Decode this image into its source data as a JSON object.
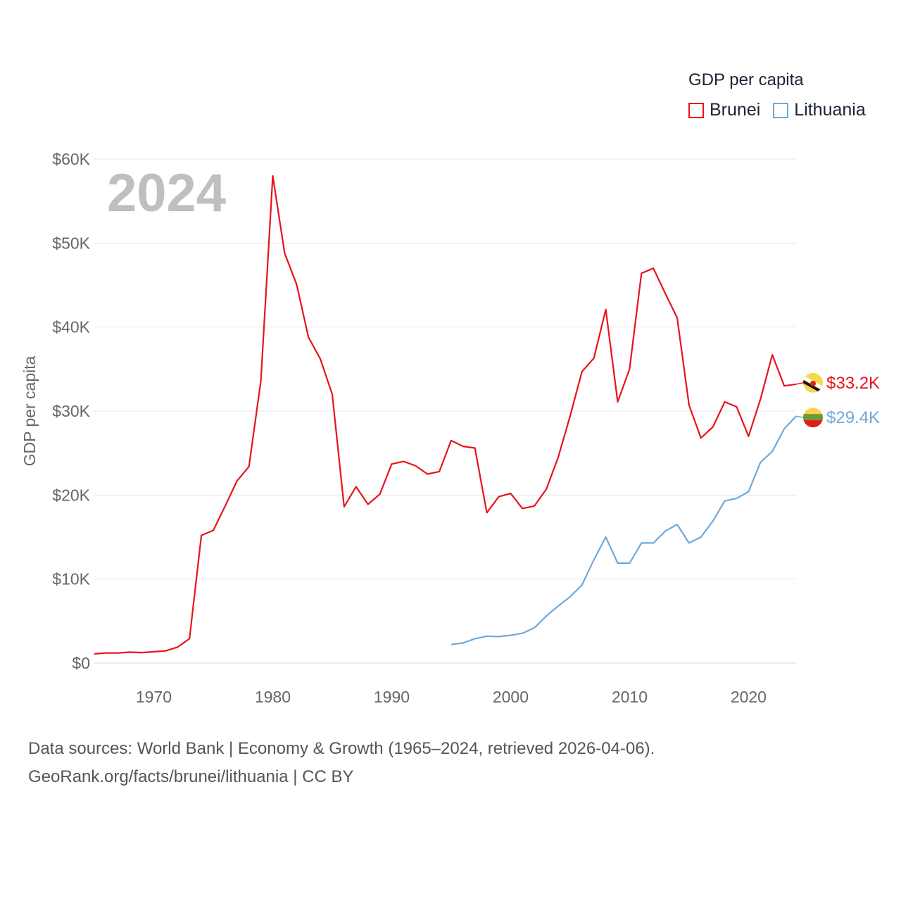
{
  "chart_data": {
    "type": "line",
    "title": "GDP per capita",
    "ylabel": "GDP per capita",
    "xlabel": "",
    "year_label": "2024",
    "xlim": [
      1965,
      2024
    ],
    "ylim": [
      0,
      60000
    ],
    "x_ticks": [
      1970,
      1980,
      1990,
      2000,
      2010,
      2020
    ],
    "y_ticks": [
      {
        "value": 0,
        "label": "$0"
      },
      {
        "value": 10000,
        "label": "$10K"
      },
      {
        "value": 20000,
        "label": "$20K"
      },
      {
        "value": 30000,
        "label": "$30K"
      },
      {
        "value": 40000,
        "label": "$40K"
      },
      {
        "value": 50000,
        "label": "$50K"
      },
      {
        "value": 60000,
        "label": "$60K"
      }
    ],
    "legend_position": "top-right",
    "series": [
      {
        "name": "Brunei",
        "color": "#e8131a",
        "end_label": "$33.2K",
        "flag": "brunei-flag-icon",
        "x": [
          1965,
          1966,
          1967,
          1968,
          1969,
          1970,
          1971,
          1972,
          1973,
          1974,
          1975,
          1976,
          1977,
          1978,
          1979,
          1980,
          1981,
          1982,
          1983,
          1984,
          1985,
          1986,
          1987,
          1988,
          1989,
          1990,
          1991,
          1992,
          1993,
          1994,
          1995,
          1996,
          1997,
          1998,
          1999,
          2000,
          2001,
          2002,
          2003,
          2004,
          2005,
          2006,
          2007,
          2008,
          2009,
          2010,
          2011,
          2012,
          2013,
          2014,
          2015,
          2016,
          2017,
          2018,
          2019,
          2020,
          2021,
          2022,
          2023,
          2024
        ],
        "values": [
          1100,
          1200,
          1200,
          1300,
          1250,
          1350,
          1450,
          1900,
          2900,
          15200,
          15800,
          18700,
          21700,
          23400,
          33600,
          58000,
          48800,
          45100,
          38800,
          36200,
          32000,
          18600,
          21000,
          18900,
          20100,
          23700,
          24000,
          23500,
          22500,
          22800,
          26500,
          25800,
          25600,
          17900,
          19800,
          20200,
          18400,
          18700,
          20700,
          24500,
          29400,
          34700,
          36300,
          42100,
          31100,
          35000,
          46400,
          47000,
          44000,
          41100,
          30700,
          26800,
          28100,
          31100,
          30500,
          27000,
          31400,
          36700,
          33000,
          33200
        ]
      },
      {
        "name": "Lithuania",
        "color": "#6fa8dc",
        "end_label": "$29.4K",
        "flag": "lithuania-flag-icon",
        "x": [
          1995,
          1996,
          1997,
          1998,
          1999,
          2000,
          2001,
          2002,
          2003,
          2004,
          2005,
          2006,
          2007,
          2008,
          2009,
          2010,
          2011,
          2012,
          2013,
          2014,
          2015,
          2016,
          2017,
          2018,
          2019,
          2020,
          2021,
          2022,
          2023,
          2024
        ],
        "values": [
          2200,
          2400,
          2900,
          3200,
          3150,
          3300,
          3550,
          4200,
          5600,
          6800,
          7900,
          9300,
          12300,
          15000,
          11900,
          11900,
          14300,
          14300,
          15700,
          16500,
          14300,
          15000,
          16900,
          19300,
          19600,
          20400,
          23900,
          25200,
          27900,
          29400
        ]
      }
    ],
    "source_line1": "Data sources: World Bank | Economy & Growth (1965–2024, retrieved 2026-04-06).",
    "source_line2": "GeoRank.org/facts/brunei/lithuania | CC BY"
  }
}
